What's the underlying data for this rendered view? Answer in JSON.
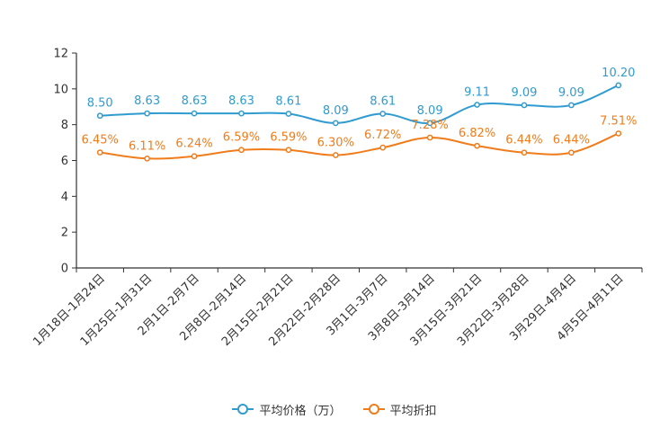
{
  "chart_data": {
    "type": "line",
    "title": "",
    "xlabel": "",
    "ylabel": "",
    "ylim": [
      0,
      12
    ],
    "yticks": [
      "0",
      "2",
      "4",
      "6",
      "8",
      "10",
      "12"
    ],
    "grid": false,
    "legend_position": "bottom-center",
    "categories": [
      "1月18日-1月24日",
      "1月25日-1月31日",
      "2月1日-2月7日",
      "2月8日-2月14日",
      "2月15日-2月21日",
      "2月22日-2月28日",
      "3月1日-3月7日",
      "3月8日-3月14日",
      "3月15日-3月21日",
      "3月22日-3月28日",
      "3月29日-4月4日",
      "4月5日-4月11日"
    ],
    "series": [
      {
        "name": "平均价格（万）",
        "color": "#2f9bd0",
        "values": [
          8.5,
          8.63,
          8.63,
          8.63,
          8.61,
          8.09,
          8.61,
          8.09,
          9.11,
          9.09,
          9.09,
          10.2
        ],
        "labels": [
          "8.50",
          "8.63",
          "8.63",
          "8.63",
          "8.61",
          "8.09",
          "8.61",
          "8.09",
          "9.11",
          "9.09",
          "9.09",
          "10.20"
        ]
      },
      {
        "name": "平均折扣",
        "color": "#f07c1b",
        "values": [
          6.45,
          6.11,
          6.24,
          6.59,
          6.59,
          6.3,
          6.72,
          7.28,
          6.82,
          6.44,
          6.44,
          7.51
        ],
        "labels": [
          "6.45%",
          "6.11%",
          "6.24%",
          "6.59%",
          "6.59%",
          "6.30%",
          "6.72%",
          "7.28%",
          "6.82%",
          "6.44%",
          "6.44%",
          "7.51%"
        ]
      }
    ]
  }
}
